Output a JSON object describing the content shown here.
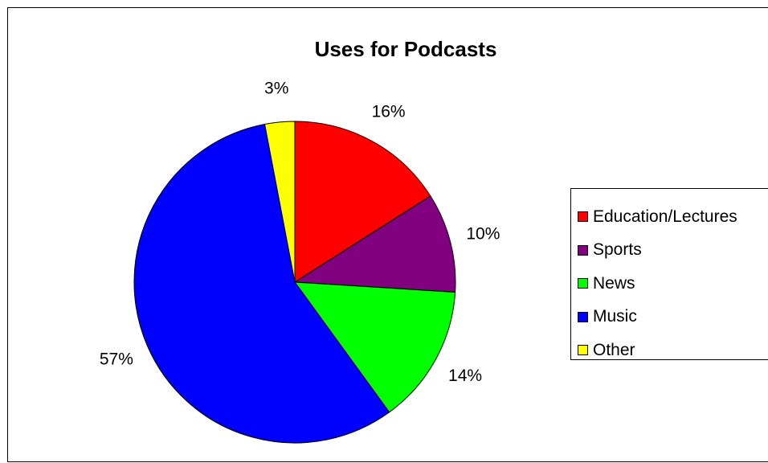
{
  "chart_data": {
    "type": "pie",
    "title": "Uses for Podcasts",
    "categories": [
      "Education/Lectures",
      "Sports",
      "News",
      "Music",
      "Other"
    ],
    "values": [
      16,
      10,
      14,
      57,
      3
    ],
    "labels": [
      "16%",
      "10%",
      "14%",
      "57%",
      "3%"
    ],
    "colors": [
      "#ff0000",
      "#800080",
      "#00ff00",
      "#0000ff",
      "#ffff00"
    ],
    "start_angle": "12 o'clock",
    "direction": "clockwise",
    "legend_position": "right"
  }
}
